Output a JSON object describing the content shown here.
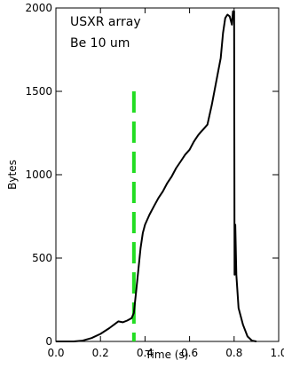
{
  "chart_data": {
    "type": "line",
    "title": "",
    "xlabel": "Time (s)",
    "ylabel": "Bytes",
    "xlim": [
      0.0,
      1.0
    ],
    "ylim": [
      0,
      2000
    ],
    "xticks": [
      0.0,
      0.2,
      0.4,
      0.6,
      0.8,
      1.0
    ],
    "xtick_labels": [
      "0.0",
      "0.2",
      "0.4",
      "0.6",
      "0.8",
      "1.0"
    ],
    "yticks": [
      0,
      500,
      1000,
      1500,
      2000
    ],
    "ytick_labels": [
      "0",
      "500",
      "1000",
      "1500",
      "2000"
    ],
    "annotations": [
      "USXR array",
      "Be 10 um"
    ],
    "line_color": "#000000",
    "marker_color": "#22dd22",
    "marker": {
      "x": 0.35,
      "y_range": [
        0,
        1500
      ],
      "style": "dashed"
    },
    "grid": false,
    "series": [
      {
        "x": [
          0.0,
          0.08,
          0.12,
          0.16,
          0.2,
          0.24,
          0.26,
          0.28,
          0.3,
          0.32,
          0.34,
          0.35,
          0.36,
          0.37,
          0.38,
          0.39,
          0.4,
          0.42,
          0.44,
          0.46,
          0.48,
          0.5,
          0.52,
          0.54,
          0.56,
          0.58,
          0.6,
          0.62,
          0.64,
          0.66,
          0.68,
          0.7,
          0.72,
          0.74,
          0.75,
          0.76,
          0.77,
          0.78,
          0.79,
          0.795,
          0.8,
          0.802,
          0.805,
          0.81,
          0.82,
          0.84,
          0.86,
          0.88,
          0.9
        ],
        "y": [
          0,
          0,
          5,
          20,
          45,
          80,
          100,
          120,
          115,
          125,
          140,
          170,
          300,
          430,
          560,
          650,
          700,
          760,
          810,
          860,
          900,
          950,
          990,
          1040,
          1080,
          1120,
          1150,
          1200,
          1240,
          1270,
          1300,
          1420,
          1560,
          1700,
          1850,
          1940,
          1960,
          1950,
          1900,
          1980,
          1980,
          400,
          700,
          400,
          200,
          100,
          30,
          5,
          0
        ]
      }
    ]
  }
}
